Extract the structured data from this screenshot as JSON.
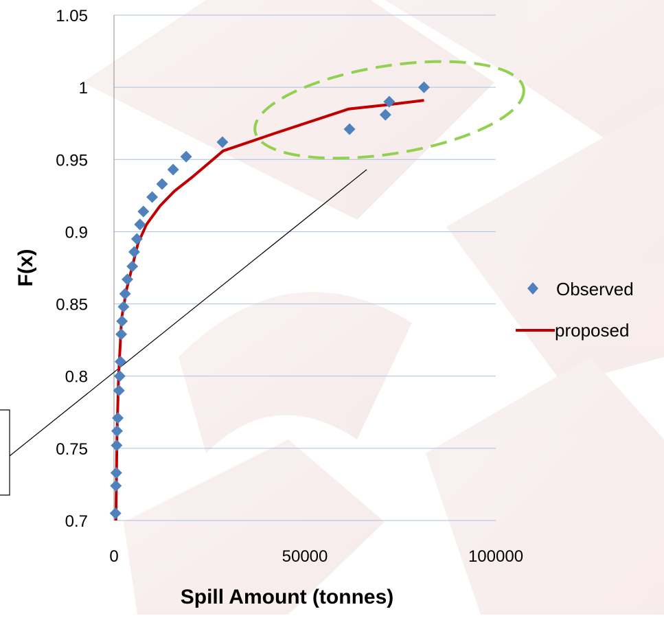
{
  "chart_data": {
    "type": "scatter",
    "title": "",
    "xlabel": "Spill Amount (tonnes)",
    "ylabel": "F(x)",
    "xlim": [
      0,
      100000
    ],
    "ylim": [
      0.7,
      1.05
    ],
    "x_ticks": [
      "0",
      "50000",
      "100000"
    ],
    "y_ticks": [
      "0.7",
      "0.75",
      "0.8",
      "0.85",
      "0.9",
      "0.95",
      "1",
      "1.05"
    ],
    "grid": "horizontal",
    "legend_position": "right",
    "series": [
      {
        "name": "Observed",
        "kind": "scatter",
        "marker": "diamond",
        "color": "#4f81bd",
        "points": [
          [
            400,
            0.705
          ],
          [
            500,
            0.724
          ],
          [
            600,
            0.733
          ],
          [
            700,
            0.752
          ],
          [
            800,
            0.762
          ],
          [
            1000,
            0.771
          ],
          [
            1300,
            0.79
          ],
          [
            1500,
            0.8
          ],
          [
            1700,
            0.81
          ],
          [
            1900,
            0.829
          ],
          [
            2100,
            0.838
          ],
          [
            2500,
            0.848
          ],
          [
            2900,
            0.857
          ],
          [
            3500,
            0.867
          ],
          [
            4800,
            0.876
          ],
          [
            5300,
            0.886
          ],
          [
            6000,
            0.895
          ],
          [
            6800,
            0.905
          ],
          [
            7700,
            0.914
          ],
          [
            10000,
            0.924
          ],
          [
            12600,
            0.933
          ],
          [
            15500,
            0.943
          ],
          [
            18900,
            0.952
          ],
          [
            28400,
            0.962
          ],
          [
            61700,
            0.971
          ],
          [
            71100,
            0.981
          ],
          [
            72100,
            0.99
          ],
          [
            81200,
            1.0
          ]
        ]
      },
      {
        "name": "proposed",
        "kind": "line",
        "color": "#c00000",
        "points": [
          [
            500,
            0.7
          ],
          [
            800,
            0.76
          ],
          [
            1200,
            0.8
          ],
          [
            2000,
            0.84
          ],
          [
            3300,
            0.86
          ],
          [
            4800,
            0.876
          ],
          [
            6300,
            0.892
          ],
          [
            8500,
            0.905
          ],
          [
            12100,
            0.918
          ],
          [
            15800,
            0.928
          ],
          [
            20600,
            0.938
          ],
          [
            28600,
            0.956
          ],
          [
            42000,
            0.968
          ],
          [
            61500,
            0.985
          ],
          [
            72000,
            0.988
          ],
          [
            81200,
            0.991
          ]
        ]
      }
    ],
    "annotations": [
      {
        "shape": "dashed-ellipse",
        "color": "#92d050"
      },
      {
        "shape": "leader-line",
        "color": "#000000"
      },
      {
        "shape": "callout-box",
        "color": "#000000"
      }
    ]
  }
}
